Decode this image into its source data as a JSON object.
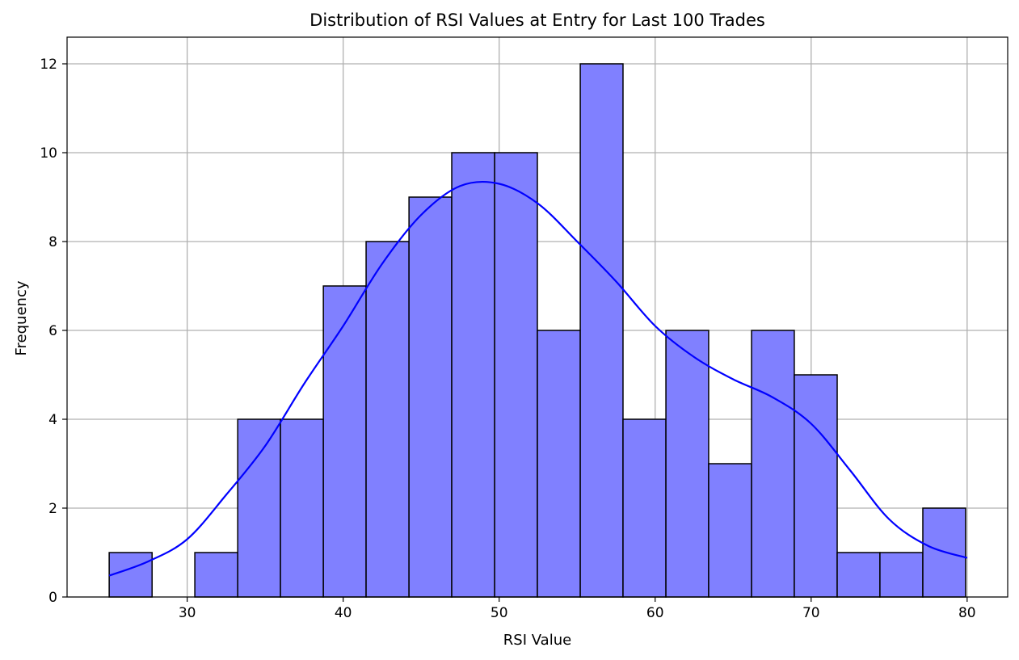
{
  "chart_data": {
    "type": "bar",
    "title": "Distribution of RSI Values at Entry for Last 100 Trades",
    "xlabel": "RSI Value",
    "ylabel": "Frequency",
    "xlim": [
      22.3,
      82.6
    ],
    "ylim": [
      0,
      12.6
    ],
    "xticks": [
      "30",
      "40",
      "50",
      "60",
      "70",
      "80"
    ],
    "yticks": [
      "0",
      "2",
      "4",
      "6",
      "8",
      "10",
      "12"
    ],
    "grid": true,
    "bins": [
      {
        "start": 25.0,
        "end": 27.75,
        "count": 1
      },
      {
        "start": 27.75,
        "end": 30.49,
        "count": 0
      },
      {
        "start": 30.49,
        "end": 33.24,
        "count": 1
      },
      {
        "start": 33.24,
        "end": 35.98,
        "count": 4
      },
      {
        "start": 35.98,
        "end": 38.73,
        "count": 4
      },
      {
        "start": 38.73,
        "end": 41.47,
        "count": 7
      },
      {
        "start": 41.47,
        "end": 44.22,
        "count": 8
      },
      {
        "start": 44.22,
        "end": 46.96,
        "count": 9
      },
      {
        "start": 46.96,
        "end": 49.71,
        "count": 10
      },
      {
        "start": 49.71,
        "end": 52.45,
        "count": 10
      },
      {
        "start": 52.45,
        "end": 55.2,
        "count": 6
      },
      {
        "start": 55.2,
        "end": 57.94,
        "count": 12
      },
      {
        "start": 57.94,
        "end": 60.69,
        "count": 4
      },
      {
        "start": 60.69,
        "end": 63.43,
        "count": 6
      },
      {
        "start": 63.43,
        "end": 66.18,
        "count": 3
      },
      {
        "start": 66.18,
        "end": 68.92,
        "count": 6
      },
      {
        "start": 68.92,
        "end": 71.67,
        "count": 5
      },
      {
        "start": 71.67,
        "end": 74.41,
        "count": 1
      },
      {
        "start": 74.41,
        "end": 77.16,
        "count": 1
      },
      {
        "start": 77.16,
        "end": 79.9,
        "count": 2
      }
    ],
    "kde": {
      "x": [
        25,
        27.5,
        30,
        32.5,
        35,
        37.5,
        40,
        42.5,
        45,
        47.5,
        50,
        52.5,
        55,
        57.5,
        60,
        62.5,
        65,
        67.5,
        70,
        72.5,
        75,
        77.5,
        80
      ],
      "y": [
        0.48,
        0.8,
        1.3,
        2.3,
        3.4,
        4.8,
        6.1,
        7.5,
        8.6,
        9.25,
        9.3,
        8.85,
        8.0,
        7.1,
        6.1,
        5.4,
        4.9,
        4.5,
        3.9,
        2.85,
        1.75,
        1.15,
        0.88
      ]
    },
    "colors": {
      "bar_fill": "#8080ff",
      "bar_edge": "#000000",
      "kde_line": "#0000ff",
      "grid": "#b0b0b0",
      "axes": "#000000"
    }
  }
}
